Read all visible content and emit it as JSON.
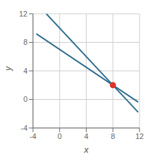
{
  "chart_data": {
    "type": "line",
    "xlabel": "x",
    "ylabel": "y",
    "xlim": [
      -4,
      12
    ],
    "ylim": [
      -4,
      12
    ],
    "xticks": [
      -4,
      0,
      4,
      8,
      12
    ],
    "yticks": [
      -4,
      0,
      4,
      8,
      12
    ],
    "grid": true,
    "series": [
      {
        "color": "#2e6d8e",
        "x": [
          -2.0,
          11.8
        ],
        "values": [
          12,
          -1.8
        ]
      },
      {
        "color": "#2e6d8e",
        "x": [
          -3.5,
          11.8
        ],
        "values": [
          9.1875,
          -0.375
        ]
      },
      {
        "type": "scatter",
        "color": "#e0332a",
        "x": [
          8
        ],
        "values": [
          2
        ]
      }
    ]
  }
}
